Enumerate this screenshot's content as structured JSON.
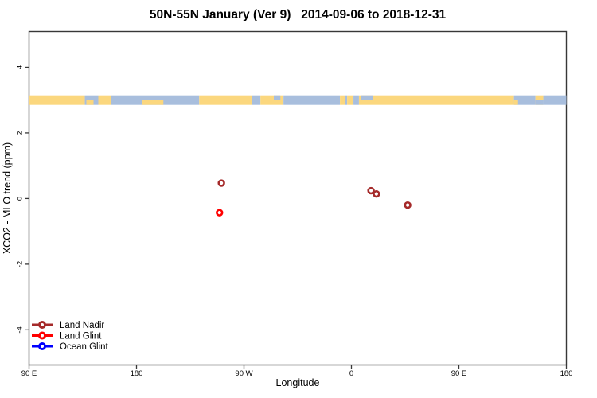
{
  "chart_data": {
    "type": "scatter",
    "title": "50N-55N January (Ver 9)   2014-09-06 to 2018-12-31",
    "xlabel": "Longitude",
    "ylabel": "XCO2 - MLO trend (ppm)",
    "xlim": [
      -270,
      180
    ],
    "ylim": [
      -5.07,
      5.09
    ],
    "grid": false,
    "x_ticks": [
      {
        "v": -270,
        "label": "90 E"
      },
      {
        "v": -180,
        "label": "180"
      },
      {
        "v": -90,
        "label": "90 W"
      },
      {
        "v": 0,
        "label": "0"
      },
      {
        "v": 90,
        "label": "90 E"
      },
      {
        "v": 180,
        "label": "180"
      }
    ],
    "y_ticks": [
      {
        "v": -4,
        "label": "-4"
      },
      {
        "v": -2,
        "label": "-2"
      },
      {
        "v": 0,
        "label": "0"
      },
      {
        "v": 2,
        "label": "2"
      },
      {
        "v": 4,
        "label": "4"
      }
    ],
    "series": [
      {
        "name": "Land Nadir",
        "color": "#A52A2A",
        "points": [
          {
            "lon": -108.9,
            "val": 0.47
          },
          {
            "lon": 16.4,
            "val": 0.24
          },
          {
            "lon": 20.9,
            "val": 0.14
          },
          {
            "lon": 47.1,
            "val": -0.2
          }
        ]
      },
      {
        "name": "Land Glint",
        "color": "#FF0000",
        "points": [
          {
            "lon": -110.5,
            "val": -0.43
          }
        ]
      },
      {
        "name": "Ocean Glint",
        "color": "#0000FF",
        "points": []
      }
    ],
    "legend": {
      "position": "bottom-left",
      "items": [
        {
          "label": "Land Nadir",
          "color": "#A52A2A"
        },
        {
          "label": "Land Glint",
          "color": "#FF0000"
        },
        {
          "label": "Ocean Glint",
          "color": "#0000FF"
        }
      ]
    },
    "map_band": {
      "value": 3,
      "land_color": "#FBD77E",
      "ocean_color": "#A8BEDD",
      "segments": [
        [
          -270.0,
          -223.3,
          "land"
        ],
        [
          -223.3,
          -212.0,
          "ocean"
        ],
        [
          -212.0,
          -201.4,
          "land"
        ],
        [
          -201.4,
          -127.5,
          "ocean"
        ],
        [
          -127.5,
          -83.5,
          "land"
        ],
        [
          -83.5,
          -76.2,
          "ocean"
        ],
        [
          -76.2,
          -56.9,
          "land"
        ],
        [
          -56.9,
          -9.6,
          "ocean"
        ],
        [
          -9.6,
          -5.6,
          "land"
        ],
        [
          -5.6,
          -3.6,
          "ocean"
        ],
        [
          -3.6,
          1.7,
          "land"
        ],
        [
          1.7,
          6.3,
          "ocean"
        ],
        [
          6.3,
          136.1,
          "land"
        ],
        [
          136.1,
          154.1,
          "ocean"
        ],
        [
          154.1,
          160.7,
          "land"
        ],
        [
          160.7,
          180.0,
          "ocean"
        ]
      ],
      "detail_patches": [
        [
          -175.5,
          -157.5,
          "land",
          "bottom"
        ],
        [
          -222.0,
          -216.0,
          "land",
          "bottom"
        ],
        [
          -65.0,
          -59.5,
          "ocean",
          "top"
        ],
        [
          8.0,
          18.0,
          "ocean",
          "top"
        ],
        [
          136.1,
          139.5,
          "land",
          "bottom"
        ],
        [
          154.1,
          160.7,
          "ocean",
          "bottom"
        ]
      ]
    }
  }
}
